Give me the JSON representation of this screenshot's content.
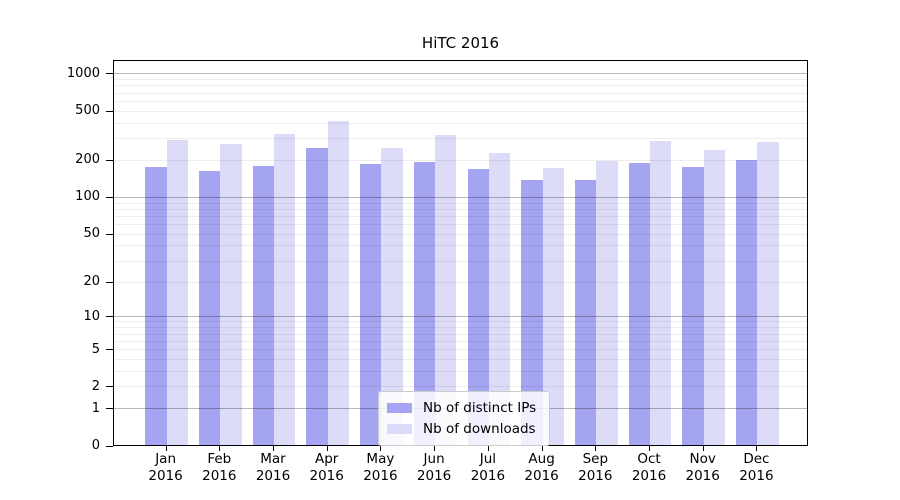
{
  "chart_data": {
    "type": "bar",
    "title": "HiTC 2016",
    "categories": [
      [
        "Jan",
        "2016"
      ],
      [
        "Feb",
        "2016"
      ],
      [
        "Mar",
        "2016"
      ],
      [
        "Apr",
        "2016"
      ],
      [
        "May",
        "2016"
      ],
      [
        "Jun",
        "2016"
      ],
      [
        "Jul",
        "2016"
      ],
      [
        "Aug",
        "2016"
      ],
      [
        "Sep",
        "2016"
      ],
      [
        "Oct",
        "2016"
      ],
      [
        "Nov",
        "2016"
      ],
      [
        "Dec",
        "2016"
      ]
    ],
    "series": [
      {
        "name": "Nb of distinct IPs",
        "color": "#a4a4f0",
        "values": [
          175,
          163,
          177,
          248,
          184,
          192,
          170,
          137,
          138,
          189,
          175,
          200
        ]
      },
      {
        "name": "Nb of downloads",
        "color": "#dcdcf8",
        "values": [
          287,
          270,
          326,
          412,
          251,
          316,
          228,
          172,
          194,
          285,
          242,
          277
        ]
      }
    ],
    "y_axis": {
      "tick_labels": [
        "0",
        "1",
        "2",
        "5",
        "10",
        "20",
        "50",
        "100",
        "200",
        "500",
        "1000"
      ],
      "tick_values": [
        0,
        1,
        2,
        5,
        10,
        20,
        50,
        100,
        200,
        500,
        1000
      ],
      "scale": "log10(1+v)",
      "range": [
        0,
        1270
      ],
      "grid": "horizontal lines at n×10^k, darker at powers of 10, drawn above bars"
    },
    "x_axis": {
      "grid": "none"
    },
    "legend": {
      "position": "lower center"
    }
  },
  "colors": {
    "background": "#ffffff",
    "axis": "#000000",
    "grid_minor": "rgba(0,0,0,0.07)",
    "grid_major": "rgba(0,0,0,0.28)",
    "legend_border": "#cccccc",
    "legend_background": "rgba(255,255,255,0.82)",
    "text": "#000000"
  }
}
